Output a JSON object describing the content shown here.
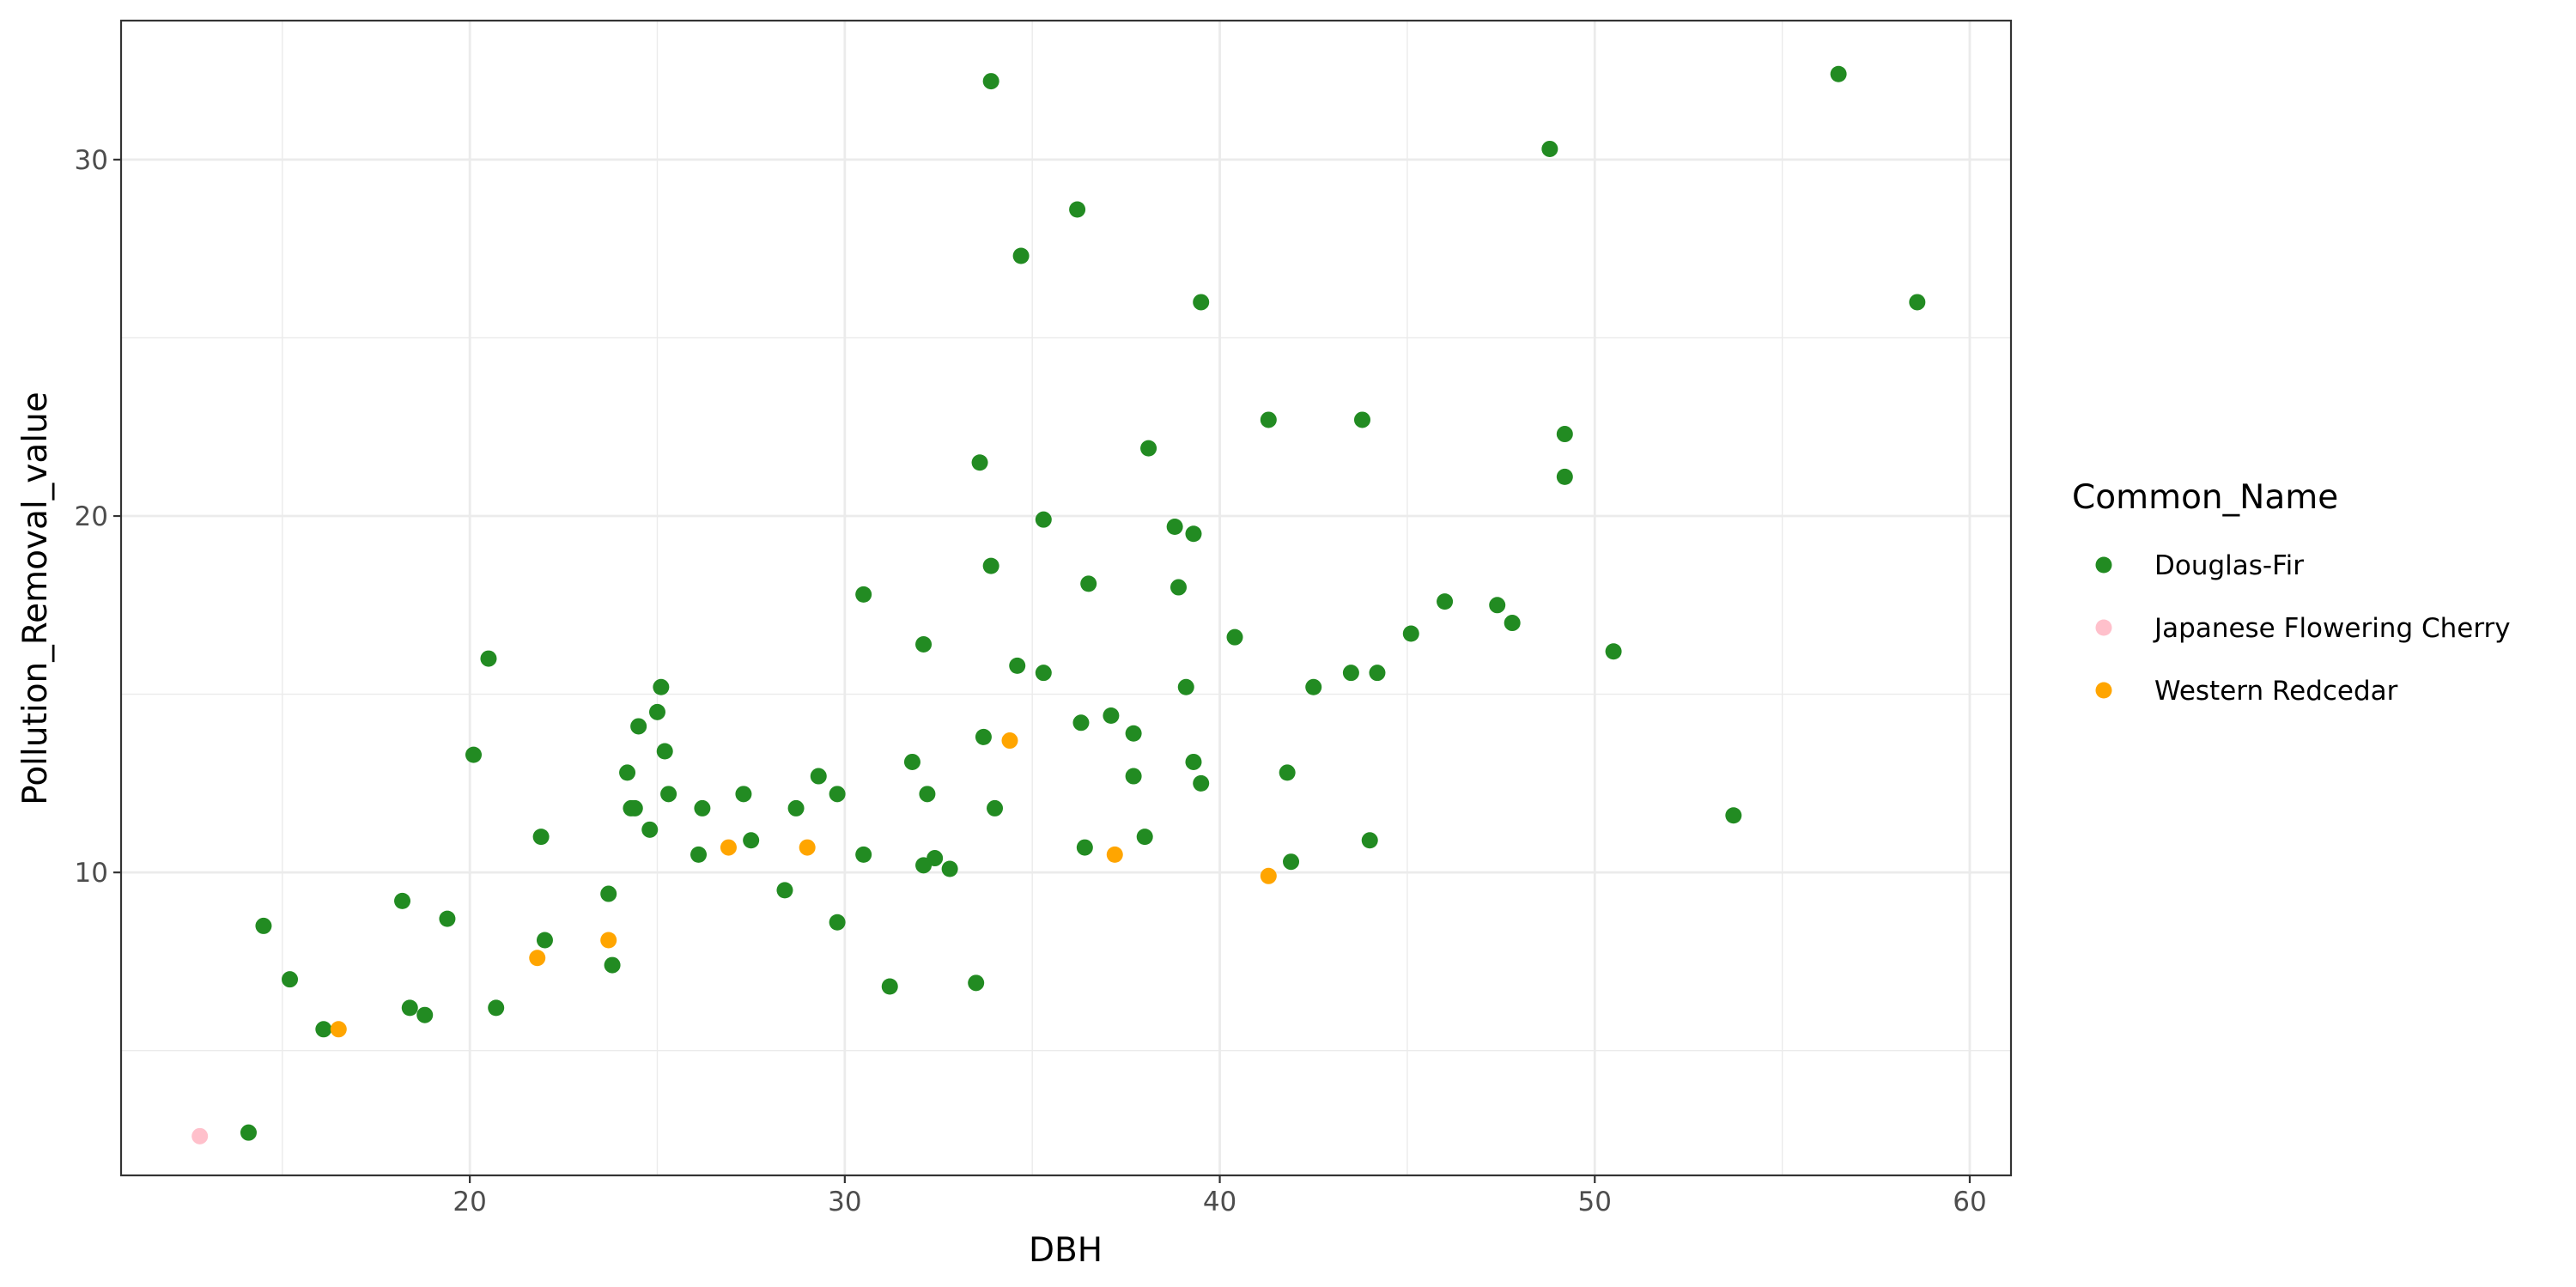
{
  "chart_data": {
    "type": "scatter",
    "title": "",
    "xlabel": "DBH",
    "ylabel": "Pollution_Removal_value",
    "xlim": [
      10.7,
      61.1
    ],
    "ylim": [
      1.5,
      33.9
    ],
    "x_ticks": [
      20,
      30,
      40,
      50,
      60
    ],
    "y_ticks": [
      10,
      20,
      30
    ],
    "grid": true,
    "legend": {
      "title": "Common_Name",
      "position": "right"
    },
    "series": [
      {
        "name": "Douglas-Fir",
        "color": "#228B22",
        "points": [
          [
            14.1,
            2.7
          ],
          [
            14.5,
            8.5
          ],
          [
            15.2,
            7.0
          ],
          [
            16.1,
            5.6
          ],
          [
            18.2,
            9.2
          ],
          [
            18.4,
            6.2
          ],
          [
            18.8,
            6.0
          ],
          [
            19.4,
            8.7
          ],
          [
            20.1,
            13.3
          ],
          [
            20.5,
            16.0
          ],
          [
            20.7,
            6.2
          ],
          [
            21.9,
            11.0
          ],
          [
            22.0,
            8.1
          ],
          [
            23.7,
            9.4
          ],
          [
            23.8,
            7.4
          ],
          [
            24.2,
            12.8
          ],
          [
            24.3,
            11.8
          ],
          [
            24.4,
            11.8
          ],
          [
            24.5,
            14.1
          ],
          [
            24.8,
            11.2
          ],
          [
            25.0,
            14.5
          ],
          [
            25.1,
            15.2
          ],
          [
            25.2,
            13.4
          ],
          [
            25.3,
            12.2
          ],
          [
            26.1,
            10.5
          ],
          [
            26.2,
            11.8
          ],
          [
            27.3,
            12.2
          ],
          [
            27.5,
            10.9
          ],
          [
            28.4,
            9.5
          ],
          [
            28.7,
            11.8
          ],
          [
            29.3,
            12.7
          ],
          [
            29.8,
            12.2
          ],
          [
            29.8,
            8.6
          ],
          [
            30.5,
            10.5
          ],
          [
            30.5,
            17.8
          ],
          [
            31.2,
            6.8
          ],
          [
            31.8,
            13.1
          ],
          [
            32.1,
            10.2
          ],
          [
            32.1,
            16.4
          ],
          [
            32.2,
            12.2
          ],
          [
            32.4,
            10.4
          ],
          [
            32.8,
            10.1
          ],
          [
            33.5,
            6.9
          ],
          [
            33.6,
            21.5
          ],
          [
            33.7,
            13.8
          ],
          [
            33.9,
            18.6
          ],
          [
            33.9,
            32.2
          ],
          [
            34.0,
            11.8
          ],
          [
            34.6,
            15.8
          ],
          [
            34.7,
            27.3
          ],
          [
            35.3,
            15.6
          ],
          [
            35.3,
            19.9
          ],
          [
            36.2,
            28.6
          ],
          [
            36.3,
            14.2
          ],
          [
            36.4,
            10.7
          ],
          [
            36.5,
            18.1
          ],
          [
            37.1,
            14.4
          ],
          [
            37.7,
            13.9
          ],
          [
            37.7,
            12.7
          ],
          [
            38.0,
            11.0
          ],
          [
            38.1,
            21.9
          ],
          [
            38.8,
            19.7
          ],
          [
            38.9,
            18.0
          ],
          [
            39.1,
            15.2
          ],
          [
            39.3,
            19.5
          ],
          [
            39.3,
            13.1
          ],
          [
            39.5,
            26.0
          ],
          [
            39.5,
            12.5
          ],
          [
            40.4,
            16.6
          ],
          [
            41.3,
            22.7
          ],
          [
            41.8,
            12.8
          ],
          [
            41.9,
            10.3
          ],
          [
            42.5,
            15.2
          ],
          [
            43.5,
            15.6
          ],
          [
            43.8,
            22.7
          ],
          [
            44.0,
            10.9
          ],
          [
            44.2,
            15.6
          ],
          [
            45.1,
            16.7
          ],
          [
            46.0,
            17.6
          ],
          [
            47.4,
            17.5
          ],
          [
            47.8,
            17.0
          ],
          [
            48.8,
            30.3
          ],
          [
            49.2,
            22.3
          ],
          [
            49.2,
            21.1
          ],
          [
            50.5,
            16.2
          ],
          [
            53.7,
            11.6
          ],
          [
            56.5,
            32.4
          ],
          [
            58.6,
            26.0
          ]
        ]
      },
      {
        "name": "Japanese Flowering Cherry",
        "color": "#FFC0CB",
        "points": [
          [
            12.8,
            2.6
          ]
        ]
      },
      {
        "name": "Western Redcedar",
        "color": "#FFA500",
        "points": [
          [
            16.5,
            5.6
          ],
          [
            21.8,
            7.6
          ],
          [
            23.7,
            8.1
          ],
          [
            26.9,
            10.7
          ],
          [
            29.0,
            10.7
          ],
          [
            34.4,
            13.7
          ],
          [
            37.2,
            10.5
          ],
          [
            41.3,
            9.9
          ]
        ]
      }
    ]
  }
}
